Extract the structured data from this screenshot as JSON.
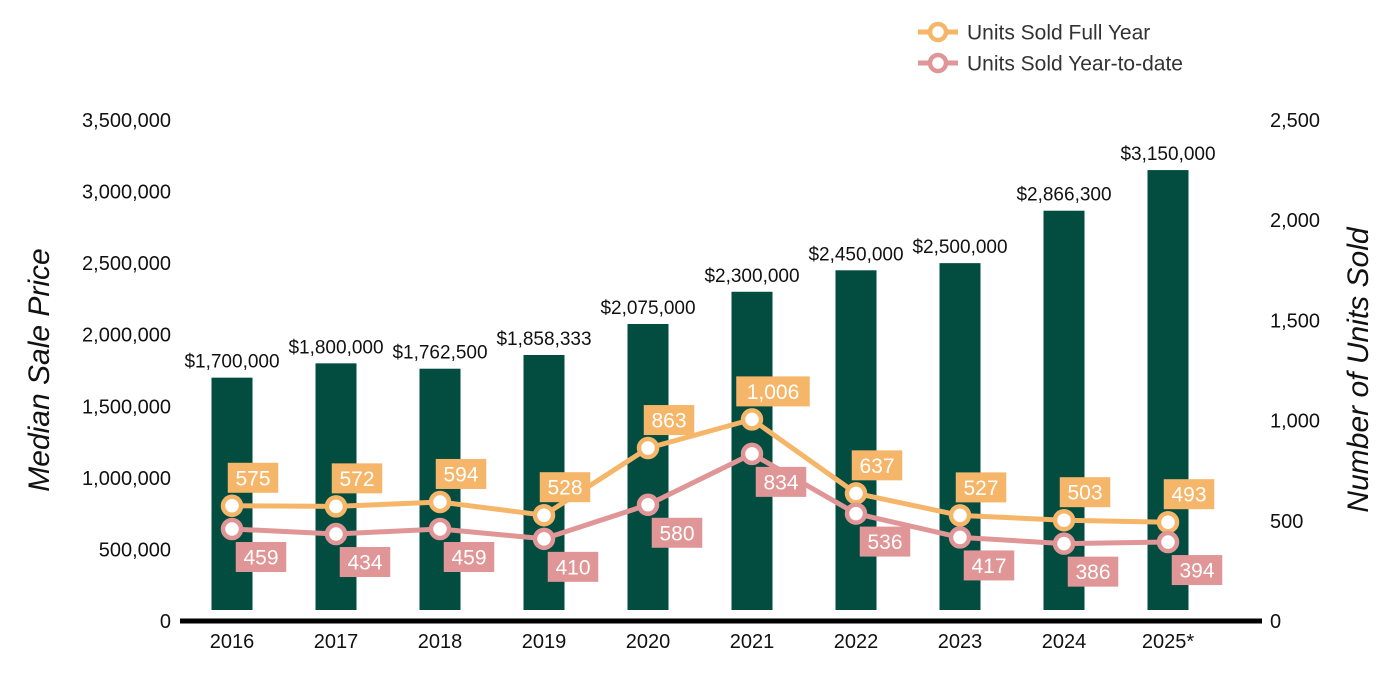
{
  "chart_data": {
    "type": "bar",
    "categories": [
      "2016",
      "2017",
      "2018",
      "2019",
      "2020",
      "2021",
      "2022",
      "2023",
      "2024",
      "2025*"
    ],
    "series": [
      {
        "name": "",
        "type": "bar",
        "axis": "left",
        "color": "#024c40",
        "values": [
          1700000,
          1800000,
          1762500,
          1858333,
          2075000,
          2300000,
          2450000,
          2500000,
          2866300,
          3150000
        ],
        "labels": [
          "$1,700,000",
          "$1,800,000",
          "$1,762,500",
          "$1,858,333",
          "$2,075,000",
          "$2,300,000",
          "$2,450,000",
          "$2,500,000",
          "$2,866,300",
          "$3,150,000"
        ]
      },
      {
        "name": "Units Sold Full Year",
        "type": "line",
        "axis": "right",
        "color": "#f5b669",
        "values": [
          575,
          572,
          594,
          528,
          863,
          1006,
          637,
          527,
          503,
          493
        ],
        "labels": [
          "575",
          "572",
          "594",
          "528",
          "863",
          "1,006",
          "637",
          "527",
          "503",
          "493"
        ]
      },
      {
        "name": "Units Sold Year-to-date",
        "type": "line",
        "axis": "right",
        "color": "#e09596",
        "values": [
          459,
          434,
          459,
          410,
          580,
          834,
          536,
          417,
          386,
          394
        ],
        "labels": [
          "459",
          "434",
          "459",
          "410",
          "580",
          "834",
          "536",
          "417",
          "386",
          "394"
        ]
      }
    ],
    "ylabel": "Median Sale Price",
    "y2label": "Number of Units Sold",
    "ylim": [
      0,
      3500000
    ],
    "y2lim": [
      0,
      2500
    ],
    "yticks": [
      "0",
      "500,000",
      "1,000,000",
      "1,500,000",
      "2,000,000",
      "2,500,000",
      "3,000,000",
      "3,500,000"
    ],
    "y2ticks": [
      "0",
      "500",
      "1,000",
      "1,500",
      "2,000",
      "2,500"
    ],
    "grid": false,
    "legend": "top-right"
  }
}
